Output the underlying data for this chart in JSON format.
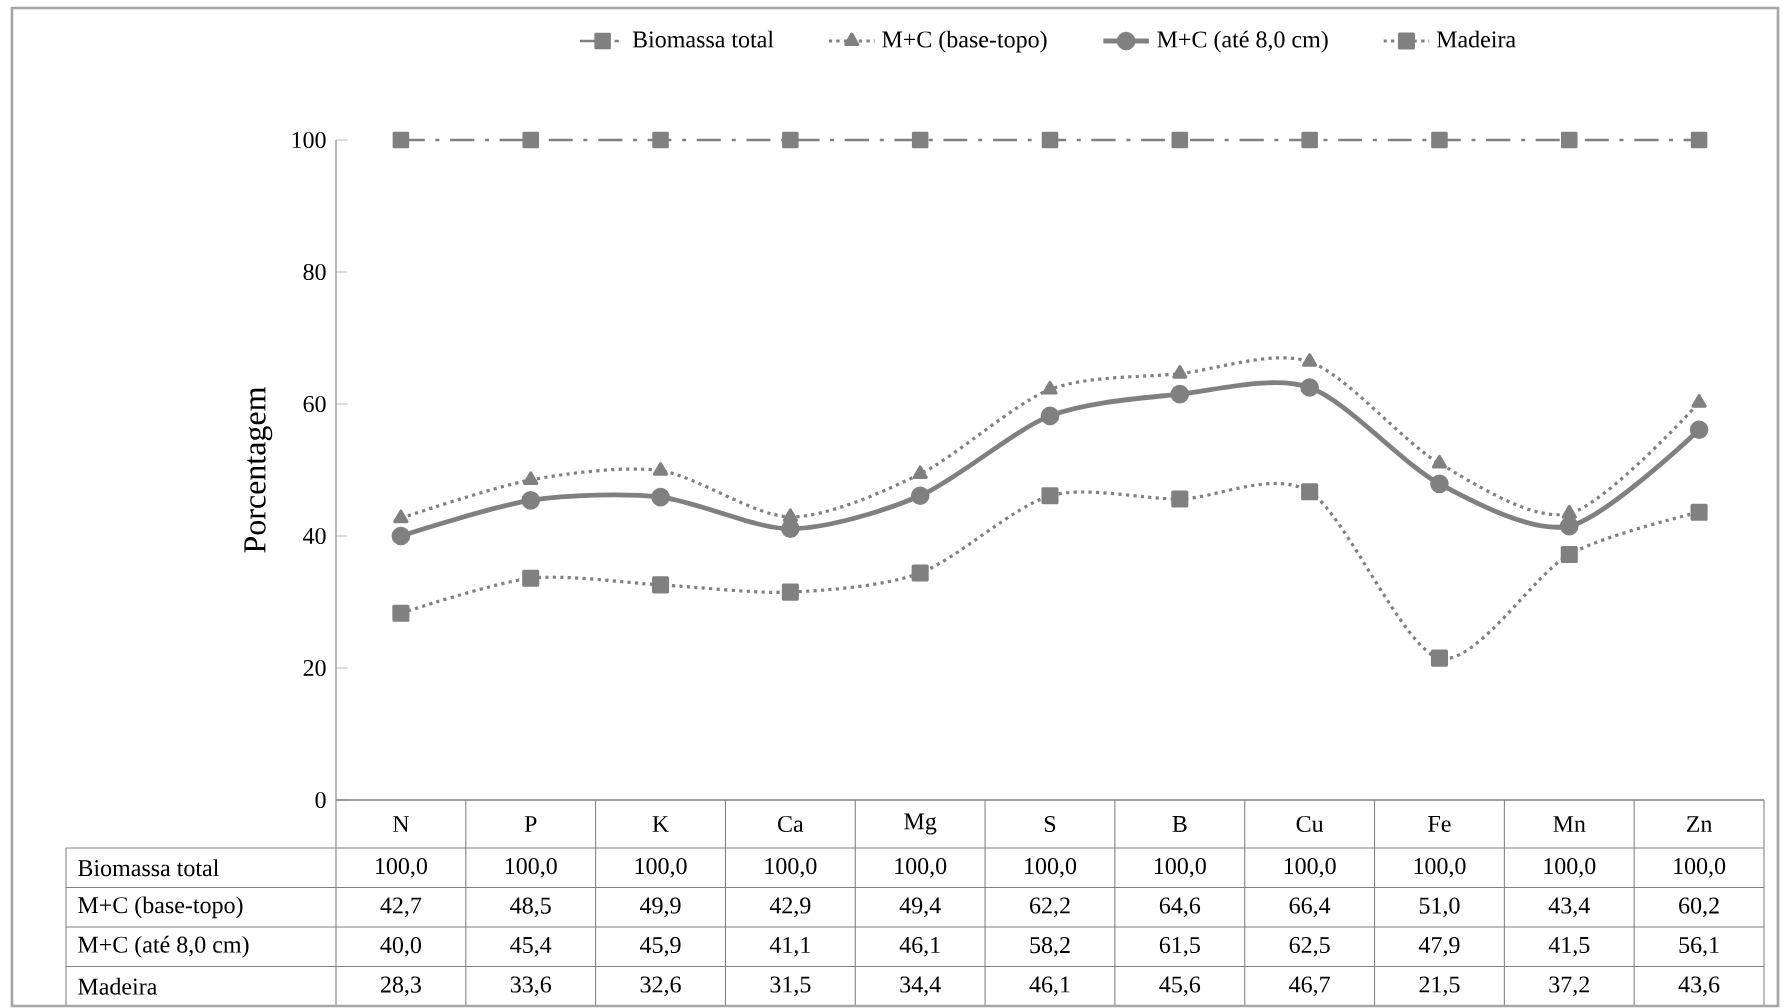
{
  "chart_data": {
    "type": "line",
    "ylabel": "Porcentagem",
    "categories": [
      "N",
      "P",
      "K",
      "Ca",
      "Mg",
      "S",
      "B",
      "Cu",
      "Fe",
      "Mn",
      "Zn"
    ],
    "ylim": [
      0,
      100
    ],
    "yticks": [
      0,
      20,
      40,
      60,
      80,
      100
    ],
    "legend": "top",
    "series": [
      {
        "name": "Biomassa total",
        "color": "#808080",
        "line_style": "dashed",
        "marker": "square",
        "values": [
          100.0,
          100.0,
          100.0,
          100.0,
          100.0,
          100.0,
          100.0,
          100.0,
          100.0,
          100.0,
          100.0
        ],
        "value_labels": [
          "100,0",
          "100,0",
          "100,0",
          "100,0",
          "100,0",
          "100,0",
          "100,0",
          "100,0",
          "100,0",
          "100,0",
          "100,0"
        ]
      },
      {
        "name": "M+C (base-topo)",
        "color": "#808080",
        "line_style": "dotted",
        "marker": "triangle",
        "values": [
          42.7,
          48.5,
          49.9,
          42.9,
          49.4,
          62.2,
          64.6,
          66.4,
          51.0,
          43.4,
          60.2
        ],
        "value_labels": [
          "42,7",
          "48,5",
          "49,9",
          "42,9",
          "49,4",
          "62,2",
          "64,6",
          "66,4",
          "51,0",
          "43,4",
          "60,2"
        ]
      },
      {
        "name": "M+C (até 8,0 cm)",
        "color": "#808080",
        "line_style": "solid",
        "marker": "circle",
        "values": [
          40.0,
          45.4,
          45.9,
          41.1,
          46.1,
          58.2,
          61.5,
          62.5,
          47.9,
          41.5,
          56.1
        ],
        "value_labels": [
          "40,0",
          "45,4",
          "45,9",
          "41,1",
          "46,1",
          "58,2",
          "61,5",
          "62,5",
          "47,9",
          "41,5",
          "56,1"
        ]
      },
      {
        "name": "Madeira",
        "color": "#808080",
        "line_style": "dotted",
        "marker": "square",
        "values": [
          28.3,
          33.6,
          32.6,
          31.5,
          34.4,
          46.1,
          45.6,
          46.7,
          21.5,
          37.2,
          43.6
        ],
        "value_labels": [
          "28,3",
          "33,6",
          "32,6",
          "31,5",
          "34,4",
          "46,1",
          "45,6",
          "46,7",
          "21,5",
          "37,2",
          "43,6"
        ]
      }
    ]
  }
}
